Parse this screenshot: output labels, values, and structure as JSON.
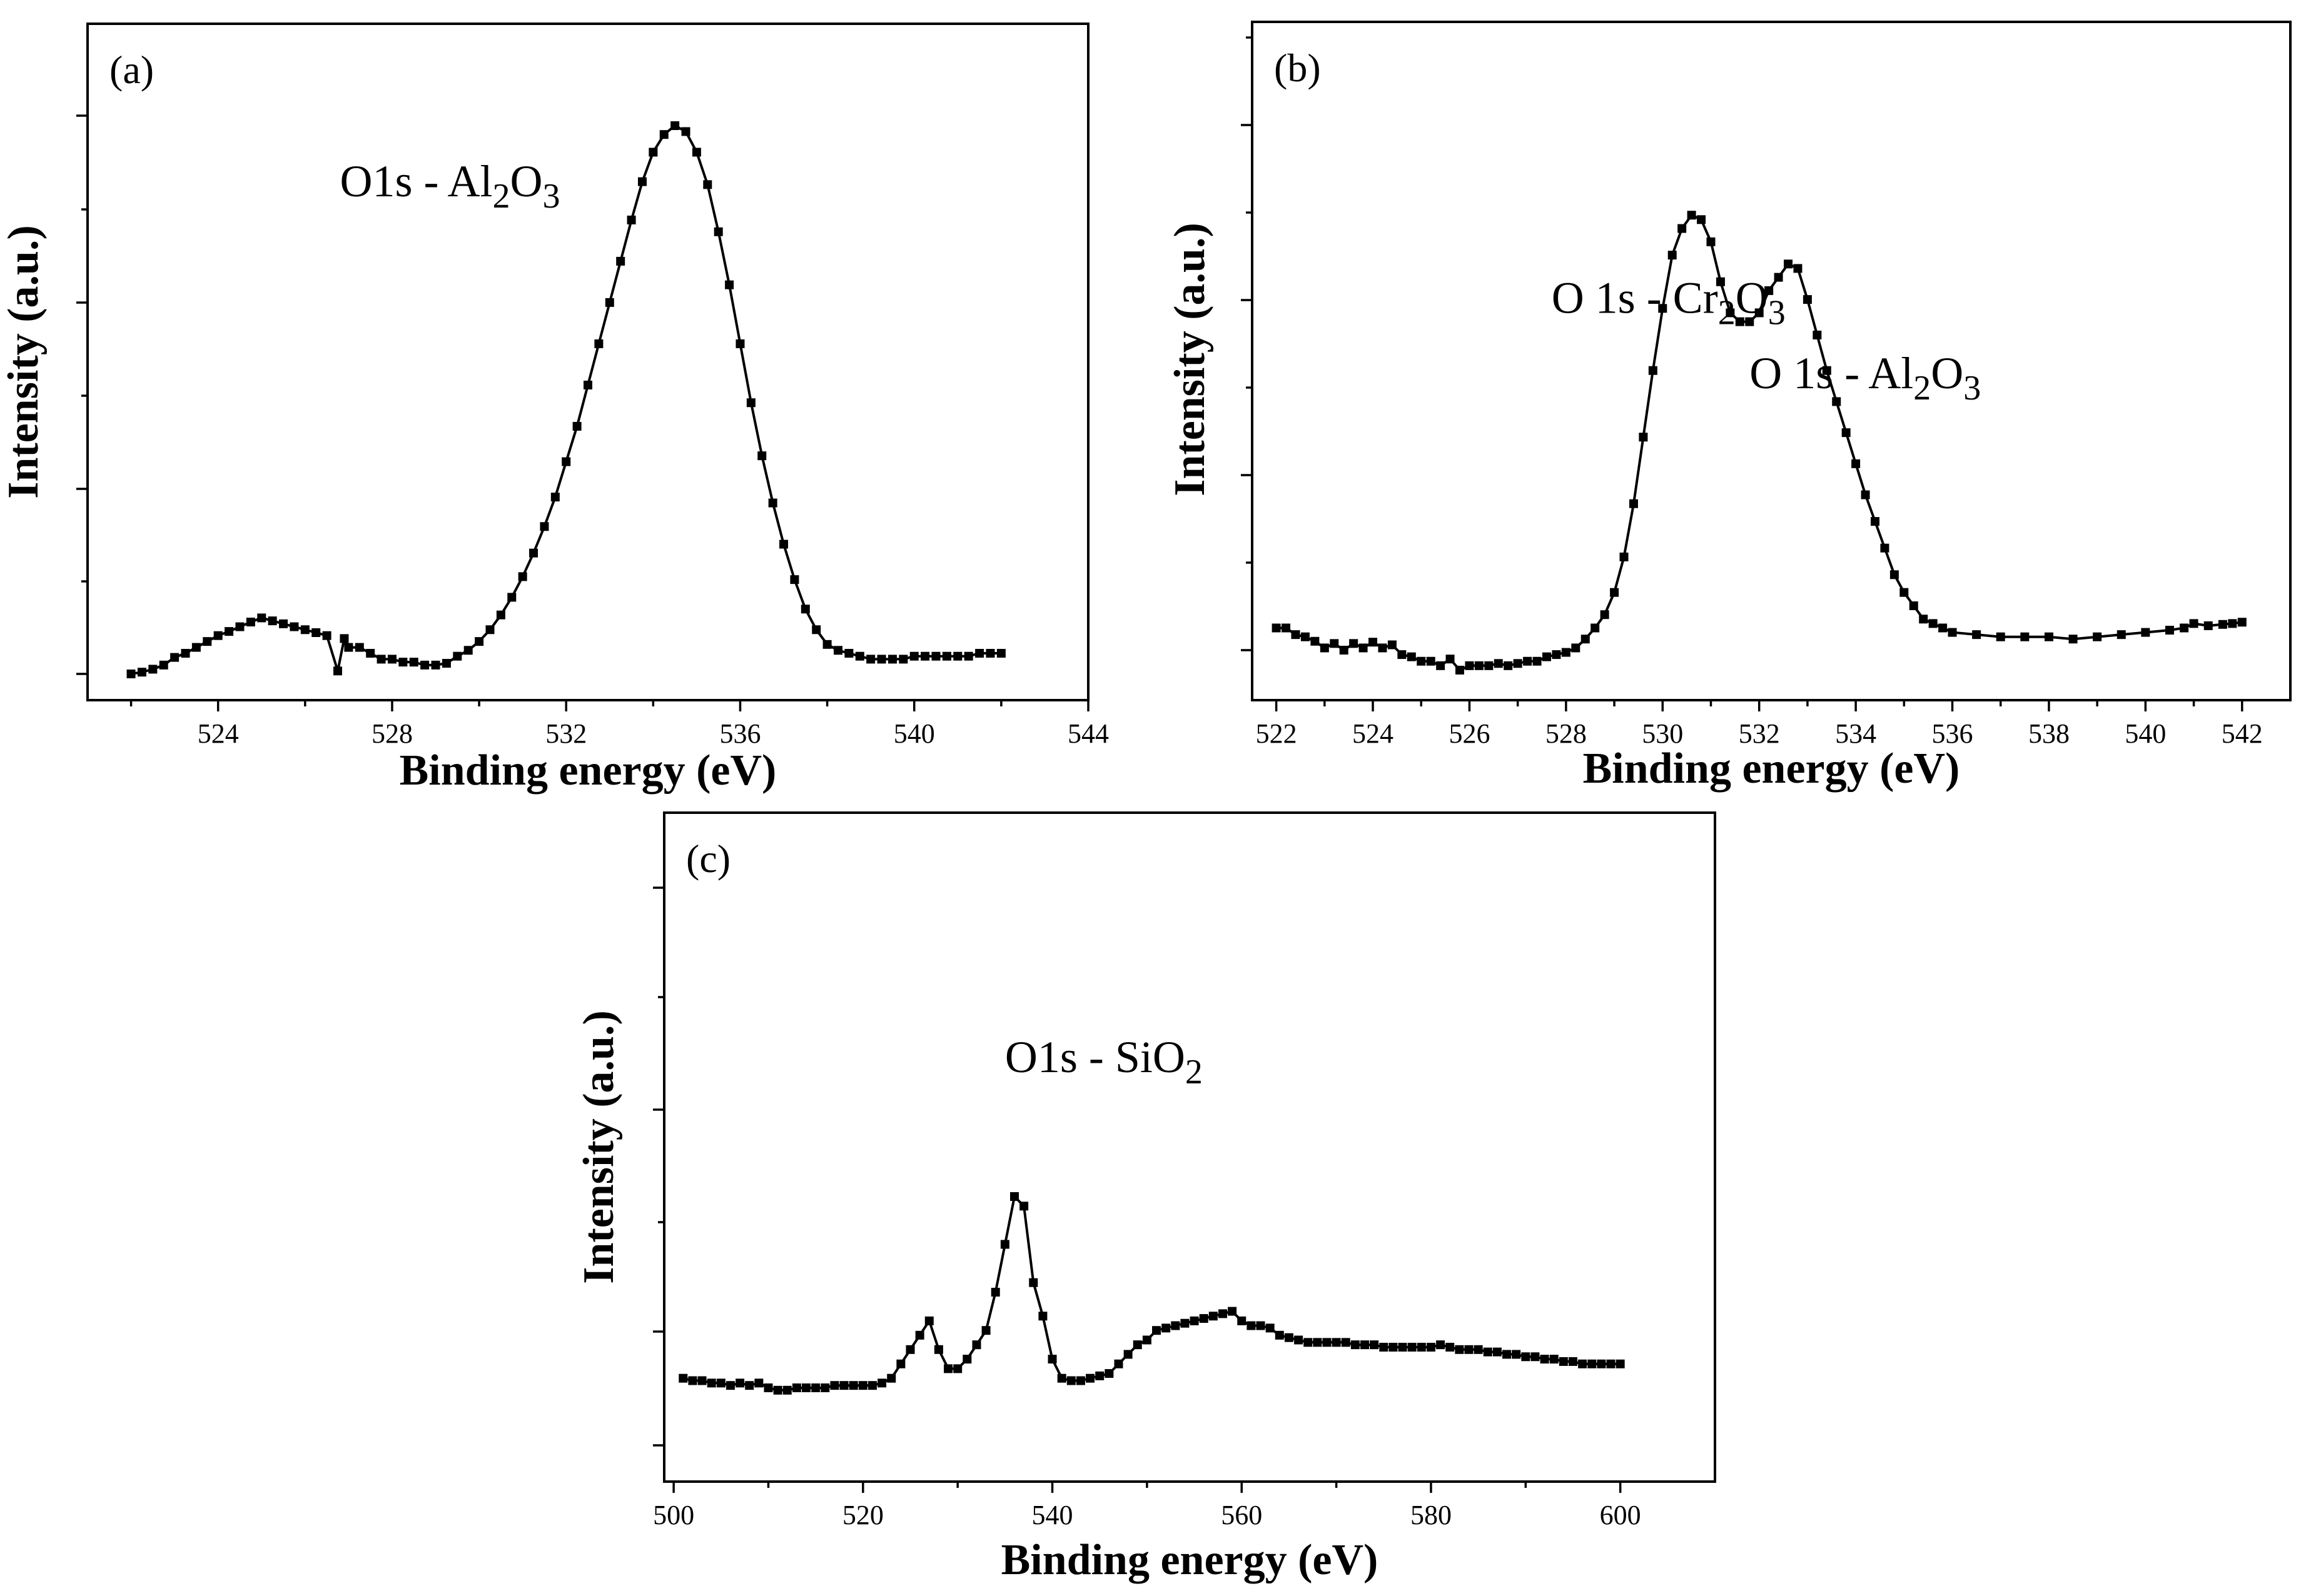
{
  "chart_data": [
    {
      "panel": "a",
      "type": "line",
      "panel_label": "(a)",
      "xlabel": "Binding energy (eV)",
      "ylabel": "Intensity (a.u.)",
      "xlim": [
        521,
        544
      ],
      "ylim": [
        0,
        100
      ],
      "xticks": [
        524,
        528,
        532,
        536,
        540,
        544
      ],
      "annotation": {
        "prefix": "O1s - Al",
        "sub1": "2",
        "mid": "O",
        "sub2": "3",
        "anchor_x": 526.8,
        "anchor_y": 81
      },
      "series": [
        {
          "name": "O1s - Al2O3",
          "x": [
            522.0,
            522.25,
            522.5,
            522.75,
            523.0,
            523.25,
            523.5,
            523.75,
            524.0,
            524.25,
            524.5,
            524.75,
            525.0,
            525.25,
            525.5,
            525.75,
            526.0,
            526.25,
            526.5,
            526.75,
            526.9,
            527.0,
            527.25,
            527.5,
            527.75,
            528.0,
            528.25,
            528.5,
            528.75,
            529.0,
            529.25,
            529.5,
            529.75,
            530.0,
            530.25,
            530.5,
            530.75,
            531.0,
            531.25,
            531.5,
            531.75,
            532.0,
            532.25,
            532.5,
            532.75,
            533.0,
            533.25,
            533.5,
            533.75,
            534.0,
            534.25,
            534.5,
            534.75,
            535.0,
            535.25,
            535.5,
            535.75,
            536.0,
            536.25,
            536.5,
            536.75,
            537.0,
            537.25,
            537.5,
            537.75,
            538.0,
            538.25,
            538.5,
            538.75,
            539.0,
            539.25,
            539.5,
            539.75,
            540.0,
            540.25,
            540.5,
            540.75,
            541.0,
            541.25,
            541.5,
            541.75,
            542.0
          ],
          "y": [
            0,
            0.3,
            0.8,
            1.5,
            2.8,
            3.5,
            4.5,
            5.5,
            6.5,
            7.2,
            8.0,
            8.8,
            9.5,
            9.0,
            8.5,
            8.0,
            7.5,
            7.0,
            6.5,
            0.5,
            6.0,
            4.5,
            4.5,
            3.5,
            2.5,
            2.5,
            2.0,
            2.0,
            1.5,
            1.5,
            1.8,
            3.0,
            4.0,
            5.5,
            7.5,
            10.0,
            13.0,
            16.5,
            20.5,
            25.0,
            30.0,
            36.0,
            42.0,
            49.0,
            56.0,
            63.0,
            70.0,
            77.0,
            83.5,
            88.5,
            91.5,
            93.0,
            92.0,
            88.5,
            83.0,
            75.0,
            66.0,
            56.0,
            46.0,
            37.0,
            29.0,
            22.0,
            16.0,
            11.0,
            7.5,
            5.0,
            4.0,
            3.5,
            3.0,
            2.5,
            2.5,
            2.5,
            2.5,
            3.0,
            3.0,
            3.0,
            3.0,
            3.0,
            3.0,
            3.5,
            3.5,
            3.5
          ]
        }
      ]
    },
    {
      "panel": "b",
      "type": "line",
      "panel_label": "(b)",
      "xlabel": "Binding energy (eV)",
      "ylabel": "Intensity (a.u.)",
      "xlim": [
        521.5,
        543
      ],
      "ylim": [
        0,
        100
      ],
      "xticks": [
        522,
        524,
        526,
        528,
        530,
        532,
        534,
        536,
        538,
        540,
        542
      ],
      "annotations": [
        {
          "prefix": "O 1s - Cr",
          "sub1": "2",
          "mid": "O",
          "sub2": "3",
          "anchor_x": 527.7,
          "anchor_y": 76
        },
        {
          "prefix": "O 1s - Al",
          "sub1": "2",
          "mid": "O",
          "sub2": "3",
          "anchor_x": 531.8,
          "anchor_y": 59
        }
      ],
      "series": [
        {
          "name": "O 1s",
          "x": [
            522.0,
            522.2,
            522.4,
            522.6,
            522.8,
            523.0,
            523.2,
            523.4,
            523.6,
            523.8,
            524.0,
            524.2,
            524.4,
            524.6,
            524.8,
            525.0,
            525.2,
            525.4,
            525.6,
            525.8,
            526.0,
            526.2,
            526.4,
            526.6,
            526.8,
            527.0,
            527.2,
            527.4,
            527.6,
            527.8,
            528.0,
            528.2,
            528.4,
            528.6,
            528.8,
            529.0,
            529.2,
            529.4,
            529.6,
            529.8,
            530.0,
            530.2,
            530.4,
            530.6,
            530.8,
            531.0,
            531.2,
            531.4,
            531.6,
            531.8,
            532.0,
            532.2,
            532.4,
            532.6,
            532.8,
            533.0,
            533.2,
            533.4,
            533.6,
            533.8,
            534.0,
            534.2,
            534.4,
            534.6,
            534.8,
            535.0,
            535.2,
            535.4,
            535.6,
            535.8,
            536.0,
            536.5,
            537.0,
            537.5,
            538.0,
            538.5,
            539.0,
            539.5,
            540.0,
            540.5,
            540.8,
            541.0,
            541.3,
            541.6,
            541.8,
            542.0
          ],
          "y": [
            5,
            5,
            3.5,
            3,
            2,
            0.5,
            1.5,
            0,
            1.5,
            0.5,
            1.8,
            0.5,
            1.2,
            -1,
            -1.5,
            -2.5,
            -2.5,
            -3.5,
            -2,
            -4.5,
            -3.5,
            -3.5,
            -3.5,
            -3,
            -3.5,
            -3,
            -2.5,
            -2.5,
            -1.5,
            -1,
            -0.5,
            0.5,
            2.5,
            5,
            8,
            13,
            21,
            33,
            48,
            63,
            77,
            89,
            95,
            98,
            97,
            92,
            83,
            76,
            74,
            74,
            76,
            81,
            84,
            87,
            86,
            79,
            71,
            63,
            56,
            49,
            42,
            35,
            29,
            23,
            17,
            13,
            10,
            7,
            6,
            5,
            4,
            3.5,
            3,
            3,
            3,
            2.5,
            3,
            3.5,
            4,
            4.5,
            5,
            6,
            5.5,
            5.8,
            6,
            6.3
          ]
        }
      ]
    },
    {
      "panel": "c",
      "type": "line",
      "panel_label": "(c)",
      "xlabel": "Binding energy (eV)",
      "ylabel": "Intensity (a.u.)",
      "xlim": [
        499,
        610
      ],
      "ylim": [
        0,
        100
      ],
      "xticks": [
        500,
        520,
        540,
        560,
        580,
        600
      ],
      "annotation": {
        "prefix": "O1s - SiO",
        "sub1": "2",
        "anchor_x": 535,
        "anchor_y": 66
      },
      "series": [
        {
          "name": "O1s - SiO2",
          "x": [
            501,
            502,
            503,
            504,
            505,
            506,
            507,
            508,
            509,
            510,
            511,
            512,
            513,
            514,
            515,
            516,
            517,
            518,
            519,
            520,
            521,
            522,
            523,
            524,
            525,
            526,
            527,
            528,
            529,
            530,
            531,
            532,
            533,
            534,
            535,
            536,
            537,
            538,
            539,
            540,
            541,
            542,
            543,
            544,
            545,
            546,
            547,
            548,
            549,
            550,
            551,
            552,
            553,
            554,
            555,
            556,
            557,
            558,
            559,
            560,
            561,
            562,
            563,
            564,
            565,
            566,
            567,
            568,
            569,
            570,
            571,
            572,
            573,
            574,
            575,
            576,
            577,
            578,
            579,
            580,
            581,
            582,
            583,
            584,
            585,
            586,
            587,
            588,
            589,
            590,
            591,
            592,
            593,
            594,
            595,
            596,
            597,
            598,
            599,
            600
          ],
          "y": [
            2,
            1.5,
            1.5,
            1,
            1,
            0.5,
            1,
            0.5,
            1,
            0,
            -0.5,
            -0.5,
            0,
            0,
            0,
            0,
            0.5,
            0.5,
            0.5,
            0.5,
            0.5,
            1,
            2,
            5,
            8,
            11,
            14,
            8,
            4,
            4,
            6,
            9,
            12,
            20,
            30,
            40,
            38,
            22,
            15,
            6,
            2,
            1.5,
            1.5,
            2,
            2.5,
            3,
            5,
            7,
            9,
            10,
            12,
            12.5,
            13,
            13.5,
            14,
            14.5,
            15,
            15.5,
            16,
            14,
            13,
            13,
            12.5,
            11,
            10.5,
            10,
            9.5,
            9.5,
            9.5,
            9.5,
            9.5,
            9,
            9,
            9,
            8.5,
            8.5,
            8.5,
            8.5,
            8.5,
            8.5,
            9,
            8.5,
            8,
            8,
            8,
            7.5,
            7.5,
            7,
            7,
            6.5,
            6.5,
            6,
            6,
            5.5,
            5.5,
            5,
            5,
            5,
            5,
            5
          ]
        }
      ]
    }
  ]
}
